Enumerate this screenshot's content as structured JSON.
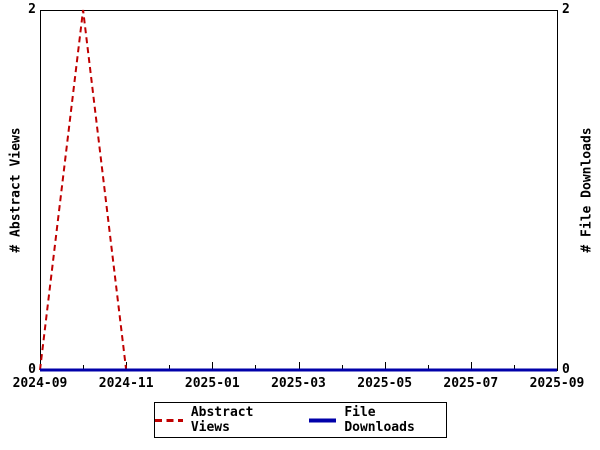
{
  "chart_data": {
    "type": "line",
    "title": "",
    "x": [
      "2024-09",
      "2024-10",
      "2024-11",
      "2024-12",
      "2025-01",
      "2025-02",
      "2025-03",
      "2025-04",
      "2025-05",
      "2025-06",
      "2025-07",
      "2025-08",
      "2025-09"
    ],
    "series": [
      {
        "name": "Abstract Views",
        "color": "#c00000",
        "style": "dashed",
        "axis": "left",
        "values": [
          0,
          2,
          0,
          0,
          0,
          0,
          0,
          0,
          0,
          0,
          0,
          0,
          0
        ]
      },
      {
        "name": "File Downloads",
        "color": "#0000aa",
        "style": "solid",
        "axis": "right",
        "values": [
          0,
          0,
          0,
          0,
          0,
          0,
          0,
          0,
          0,
          0,
          0,
          0,
          0
        ]
      }
    ],
    "ylabel_left": "# Abstract Views",
    "ylabel_right": "# File Downloads",
    "ylim": [
      0,
      2
    ],
    "yticks": [
      0,
      2
    ],
    "xtick_labels": [
      "2024-09",
      "2024-11",
      "2025-01",
      "2025-03",
      "2025-05",
      "2025-07",
      "2025-09"
    ],
    "minor_xticks": [
      "2024-10",
      "2024-12",
      "2025-02",
      "2025-04",
      "2025-06",
      "2025-08"
    ],
    "grid": false,
    "legend_position": "bottom-center",
    "axis_color": "#000000",
    "background_color": "#ffffff"
  }
}
